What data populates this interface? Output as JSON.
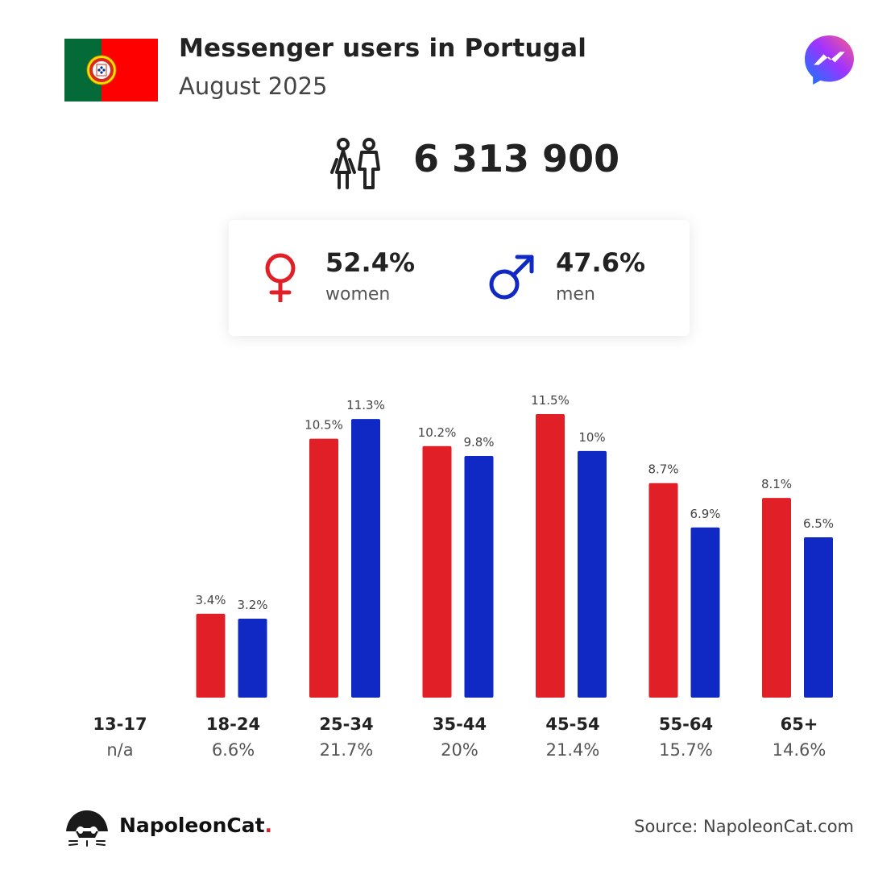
{
  "header": {
    "title": "Messenger users in Portugal",
    "subtitle": "August 2025",
    "flag_icon": "portugal-flag-icon",
    "app_icon": "messenger-icon"
  },
  "total": {
    "icon": "people-icon",
    "value": "6 313 900"
  },
  "gender": {
    "women": {
      "pct": "52.4%",
      "label": "women",
      "icon": "female-symbol-icon",
      "color": "#e01f26"
    },
    "men": {
      "pct": "47.6%",
      "label": "men",
      "icon": "male-symbol-icon",
      "color": "#1129c4"
    }
  },
  "chart_data": {
    "type": "bar",
    "categories": [
      "13-17",
      "18-24",
      "25-34",
      "35-44",
      "45-54",
      "55-64",
      "65+"
    ],
    "category_totals": [
      "n/a",
      "6.6%",
      "21.7%",
      "20%",
      "21.4%",
      "15.7%",
      "14.6%"
    ],
    "series": [
      {
        "color": "#e01f26",
        "values": [
          null,
          3.4,
          10.5,
          10.2,
          11.5,
          8.7,
          8.1
        ],
        "labels": [
          "",
          "3.4%",
          "10.5%",
          "10.2%",
          "11.5%",
          "8.7%",
          "8.1%"
        ]
      },
      {
        "color": "#1129c4",
        "values": [
          null,
          3.2,
          11.3,
          9.8,
          10,
          6.9,
          6.5
        ],
        "labels": [
          "",
          "3.2%",
          "11.3%",
          "9.8%",
          "10%",
          "6.9%",
          "6.5%"
        ]
      }
    ],
    "xlabel": "",
    "ylabel": "",
    "ylim": [
      0,
      11.5
    ],
    "grid": false,
    "legend": "none"
  },
  "footer": {
    "brand_name": "NapoleonCat",
    "brand_dot": ".",
    "logo_icon": "napoleoncat-logo-icon",
    "source": "Source: NapoleonCat.com"
  }
}
